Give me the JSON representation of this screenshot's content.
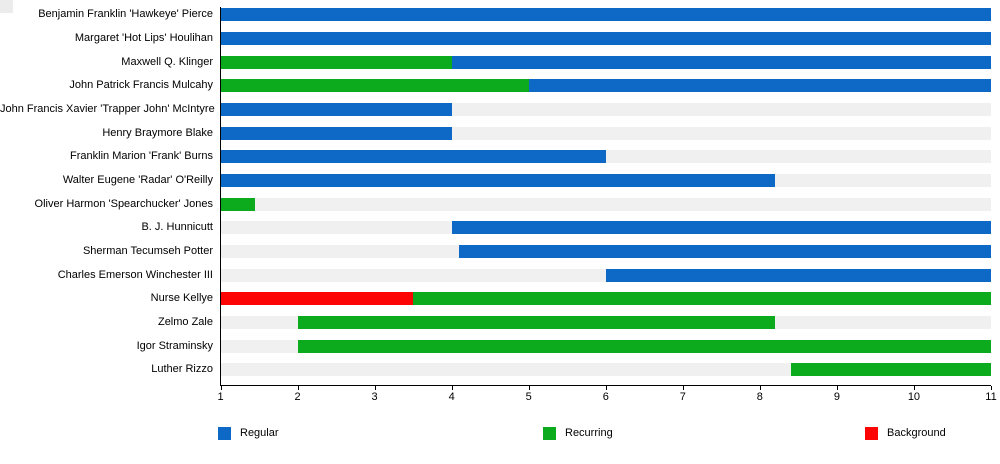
{
  "chart_data": {
    "type": "bar",
    "orientation": "horizontal",
    "title": "",
    "xlabel": "",
    "ylabel": "",
    "xlim": [
      1,
      11
    ],
    "xticks": [
      1,
      2,
      3,
      4,
      5,
      6,
      7,
      8,
      9,
      10,
      11
    ],
    "grid": false,
    "track_color": "#f0f0f0",
    "axis_color": "#000000",
    "legend_position": "bottom",
    "legend": [
      {
        "label": "Regular",
        "color": "#0d69c5"
      },
      {
        "label": "Recurring",
        "color": "#0caa1d"
      },
      {
        "label": "Background",
        "color": "#fd0404"
      }
    ],
    "rows": [
      {
        "label": "Benjamin Franklin 'Hawkeye' Pierce",
        "segments": [
          {
            "type": "Regular",
            "start": 1,
            "end": 11
          }
        ]
      },
      {
        "label": "Margaret 'Hot Lips' Houlihan",
        "segments": [
          {
            "type": "Regular",
            "start": 1,
            "end": 11
          }
        ]
      },
      {
        "label": "Maxwell Q. Klinger",
        "segments": [
          {
            "type": "Recurring",
            "start": 1,
            "end": 4
          },
          {
            "type": "Regular",
            "start": 4,
            "end": 11
          }
        ]
      },
      {
        "label": "John Patrick Francis Mulcahy",
        "segments": [
          {
            "type": "Recurring",
            "start": 1,
            "end": 5
          },
          {
            "type": "Regular",
            "start": 5,
            "end": 11
          }
        ]
      },
      {
        "label": "John Francis Xavier 'Trapper John' McIntyre",
        "segments": [
          {
            "type": "Regular",
            "start": 1,
            "end": 4
          }
        ]
      },
      {
        "label": "Henry Braymore Blake",
        "segments": [
          {
            "type": "Regular",
            "start": 1,
            "end": 4
          }
        ]
      },
      {
        "label": "Franklin Marion 'Frank' Burns",
        "segments": [
          {
            "type": "Regular",
            "start": 1,
            "end": 6
          }
        ]
      },
      {
        "label": "Walter Eugene 'Radar' O'Reilly",
        "segments": [
          {
            "type": "Regular",
            "start": 1,
            "end": 8.2
          }
        ]
      },
      {
        "label": "Oliver Harmon 'Spearchucker' Jones",
        "segments": [
          {
            "type": "Recurring",
            "start": 1,
            "end": 1.45
          }
        ]
      },
      {
        "label": "B. J. Hunnicutt",
        "segments": [
          {
            "type": "Regular",
            "start": 4,
            "end": 11
          }
        ]
      },
      {
        "label": "Sherman Tecumseh Potter",
        "segments": [
          {
            "type": "Regular",
            "start": 4.1,
            "end": 11
          }
        ]
      },
      {
        "label": "Charles Emerson Winchester III",
        "segments": [
          {
            "type": "Regular",
            "start": 6,
            "end": 11
          }
        ]
      },
      {
        "label": "Nurse Kellye",
        "segments": [
          {
            "type": "Background",
            "start": 1,
            "end": 3.5
          },
          {
            "type": "Recurring",
            "start": 3.5,
            "end": 11
          }
        ]
      },
      {
        "label": "Zelmo Zale",
        "segments": [
          {
            "type": "Recurring",
            "start": 2,
            "end": 8.2
          }
        ]
      },
      {
        "label": "Igor Straminsky",
        "segments": [
          {
            "type": "Recurring",
            "start": 2,
            "end": 11
          }
        ]
      },
      {
        "label": "Luther Rizzo",
        "segments": [
          {
            "type": "Recurring",
            "start": 8.4,
            "end": 11
          }
        ]
      }
    ]
  }
}
